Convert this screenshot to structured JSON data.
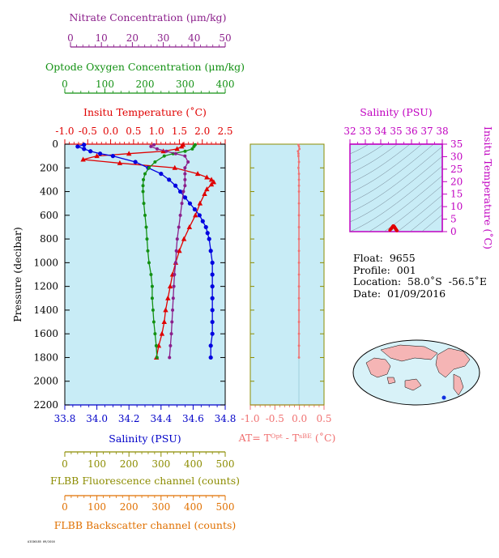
{
  "axes": {
    "nitrate": {
      "title": "Nitrate Concentration (μm/kg)",
      "ticks": [
        "0",
        "10",
        "20",
        "30",
        "40",
        "50"
      ],
      "color": "#8b1f8b"
    },
    "oxygen": {
      "title": "Optode Oxygen Concentration (μm/kg)",
      "ticks": [
        "0",
        "100",
        "200",
        "300",
        "400"
      ],
      "color": "#139113"
    },
    "temperature": {
      "title": "Insitu Temperature (˚C)",
      "ticks": [
        "-1.0",
        "-0.5",
        "0.0",
        "0.5",
        "1.0",
        "1.5",
        "2.0",
        "2.5"
      ],
      "color": "#e00000"
    },
    "salinity_bottom": {
      "title": "Salinity (PSU)",
      "ticks": [
        "33.8",
        "34.0",
        "34.2",
        "34.4",
        "34.6",
        "34.8"
      ],
      "color": "#0000c8"
    },
    "pressure": {
      "title": "Pressure (decibar)",
      "ticks": [
        "0",
        "200",
        "400",
        "600",
        "800",
        "1000",
        "1200",
        "1400",
        "1600",
        "1800",
        "2000",
        "2200"
      ]
    },
    "at": {
      "title": "AT= Tᴼᵖᵗ - Tˢᴮᴱ (˚C)",
      "ticks": [
        "-1.0",
        "-0.5",
        "0.0",
        "0.5"
      ],
      "color": "#f07070"
    },
    "fluorescence": {
      "title": "FLBB Fluorescence channel (counts)",
      "ticks": [
        "0",
        "100",
        "200",
        "300",
        "400",
        "500"
      ],
      "color": "#8c8c00"
    },
    "backscatter": {
      "title": "FLBB Backscatter channel (counts)",
      "ticks": [
        "0",
        "100",
        "200",
        "300",
        "400",
        "500"
      ],
      "color": "#e07000"
    },
    "ts_salinity": {
      "title": "Salinity (PSU)",
      "ticks": [
        "32",
        "33",
        "34",
        "35",
        "36",
        "37",
        "38"
      ],
      "color": "#c000c0"
    },
    "ts_temperature": {
      "title": "Insitu Temperature (˚C)",
      "ticks": [
        "0",
        "5",
        "10",
        "15",
        "20",
        "25",
        "30",
        "35"
      ],
      "color": "#c000c0"
    }
  },
  "info": {
    "float": "Float:  9655",
    "profile": "Profile:  001",
    "location": "Location:  58.0˚S  -56.5˚E",
    "date": "Date:  01/09/2016"
  },
  "footer_text": "AIC00185 09/2016",
  "colors": {
    "plot_bg": "#c8ecf6",
    "temperature": "#e00000",
    "salinity": "#0000e0",
    "oxygen": "#139113",
    "nitrate": "#8b1f8b",
    "at": "#f07070"
  },
  "chart_data": [
    {
      "type": "line",
      "title": "Profile",
      "ylabel": "Pressure (decibar)",
      "ylim": [
        2200,
        0
      ],
      "series": [
        {
          "name": "Insitu Temperature (˚C)",
          "xlim": [
            -1.0,
            2.5
          ],
          "pressure": [
            5,
            20,
            40,
            60,
            80,
            100,
            130,
            160,
            200,
            250,
            280,
            300,
            320,
            340,
            380,
            420,
            500,
            600,
            700,
            800,
            900,
            1000,
            1100,
            1200,
            1300,
            1400,
            1500,
            1600,
            1700,
            1800
          ],
          "values": [
            1.58,
            1.55,
            1.45,
            1.15,
            0.4,
            -0.3,
            -0.6,
            0.2,
            1.4,
            1.9,
            2.1,
            2.2,
            2.25,
            2.2,
            2.1,
            2.05,
            1.95,
            1.85,
            1.72,
            1.6,
            1.5,
            1.42,
            1.35,
            1.3,
            1.25,
            1.2,
            1.17,
            1.12,
            1.05,
            1.0
          ]
        },
        {
          "name": "Salinity (PSU)",
          "xlim": [
            33.8,
            34.8
          ],
          "pressure": [
            5,
            20,
            40,
            60,
            80,
            100,
            150,
            200,
            250,
            300,
            350,
            400,
            450,
            500,
            550,
            600,
            650,
            700,
            750,
            800,
            900,
            1000,
            1100,
            1200,
            1300,
            1400,
            1500,
            1600,
            1700,
            1800
          ],
          "values": [
            33.92,
            33.88,
            33.92,
            33.96,
            34.02,
            34.1,
            34.24,
            34.32,
            34.4,
            34.45,
            34.49,
            34.52,
            34.55,
            34.58,
            34.61,
            34.64,
            34.66,
            34.68,
            34.69,
            34.7,
            34.71,
            34.72,
            34.72,
            34.72,
            34.72,
            34.72,
            34.72,
            34.72,
            34.71,
            34.71
          ]
        },
        {
          "name": "Optode Oxygen Concentration (μm/kg)",
          "xlim": [
            0,
            400
          ],
          "pressure": [
            5,
            20,
            40,
            60,
            80,
            100,
            150,
            200,
            250,
            300,
            350,
            400,
            500,
            600,
            700,
            800,
            900,
            1000,
            1100,
            1200,
            1300,
            1400,
            1500,
            1600,
            1700,
            1800
          ],
          "values": [
            325,
            322,
            318,
            300,
            270,
            248,
            225,
            210,
            200,
            196,
            195,
            195,
            197,
            200,
            203,
            205,
            207,
            210,
            215,
            218,
            218,
            220,
            222,
            225,
            228,
            230
          ]
        },
        {
          "name": "Nitrate Concentration (μm/kg)",
          "xlim": [
            0,
            50
          ],
          "pressure": [
            5,
            20,
            40,
            60,
            80,
            100,
            150,
            200,
            250,
            300,
            350,
            400,
            500,
            600,
            700,
            800,
            900,
            1000,
            1100,
            1200,
            1300,
            1400,
            1500,
            1600,
            1700,
            1800
          ],
          "values": [
            27,
            26,
            28,
            31,
            34,
            37,
            38,
            37,
            37,
            37,
            37,
            36.5,
            36,
            35.5,
            35,
            34.5,
            34.2,
            34,
            33.6,
            33.4,
            33.2,
            33,
            32.8,
            32.6,
            32.3,
            32
          ]
        }
      ]
    },
    {
      "type": "line",
      "xlabel": "AT= Tᴼᵖᵗ - Tˢᴮᴱ (˚C)",
      "xlim": [
        -1.0,
        0.5
      ],
      "ylim": [
        2200,
        0
      ],
      "pressure": [
        5,
        20,
        40,
        60,
        80,
        100,
        150,
        200,
        250,
        300,
        350,
        400,
        500,
        600,
        700,
        800,
        900,
        1000,
        1100,
        1200,
        1300,
        1400,
        1500,
        1600,
        1700,
        1800
      ],
      "values": [
        -0.02,
        -0.01,
        0.0,
        -0.03,
        -0.02,
        -0.02,
        -0.01,
        -0.02,
        -0.01,
        -0.01,
        -0.01,
        -0.01,
        -0.01,
        -0.01,
        -0.01,
        -0.01,
        -0.01,
        -0.01,
        -0.01,
        -0.01,
        -0.01,
        -0.01,
        -0.01,
        -0.01,
        -0.01,
        -0.01
      ]
    },
    {
      "type": "scatter",
      "xlabel": "Salinity (PSU)",
      "ylabel": "Insitu Temperature (˚C)",
      "xlim": [
        32,
        38
      ],
      "ylim": [
        0,
        35
      ],
      "salinity": [
        34.6,
        34.65,
        34.7,
        34.72,
        34.75,
        34.78,
        34.8,
        34.82,
        34.85,
        34.88,
        34.9,
        34.92,
        34.95,
        34.98,
        35.0,
        35.02,
        35.05
      ],
      "temperature": [
        0.6,
        1.0,
        1.3,
        1.5,
        1.8,
        2.0,
        2.2,
        2.3,
        2.2,
        2.0,
        1.8,
        1.6,
        1.3,
        1.0,
        0.8,
        0.6,
        0.4
      ]
    }
  ]
}
